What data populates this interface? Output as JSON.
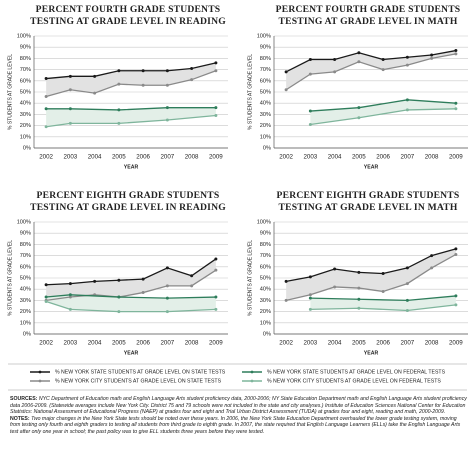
{
  "chart_data": [
    {
      "type": "line",
      "title": [
        "PERCENT FOURTH GRADE STUDENTS",
        "TESTING AT GRADE LEVEL IN READING"
      ],
      "categories": [
        "2002",
        "2003",
        "2004",
        "2005",
        "2006",
        "2007",
        "2008",
        "2009"
      ],
      "x_label": "YEAR",
      "y_label": "% STUDENTS AT GRADE LEVEL",
      "ylim": [
        0,
        100
      ],
      "yticks": [
        {
          "value": 0,
          "label": "0%"
        },
        {
          "value": 10,
          "label": "10%"
        },
        {
          "value": 20,
          "label": "20%"
        },
        {
          "value": 30,
          "label": "30%"
        },
        {
          "value": 40,
          "label": "40%"
        },
        {
          "value": 50,
          "label": "50%"
        },
        {
          "value": 60,
          "label": "60%"
        },
        {
          "value": 70,
          "label": "70%"
        },
        {
          "value": 80,
          "label": "80%"
        },
        {
          "value": 90,
          "label": "90%"
        },
        {
          "value": 100,
          "label": "100%"
        }
      ],
      "grid": true,
      "series": [
        {
          "name": "% NEW YORK STATE STUDENTS AT GRADE LEVEL ON STATE TESTS",
          "color": "#1a1a1a",
          "values": [
            62,
            64,
            64,
            69,
            69,
            69,
            71,
            76
          ]
        },
        {
          "name": "% NEW YORK CITY STUDENTS AT GRADE LEVEL ON STATE TESTS",
          "color": "#8a8a8a",
          "values": [
            46,
            52,
            49,
            57,
            56,
            56,
            61,
            69
          ]
        },
        {
          "name": "% NEW YORK STATE STUDENTS AT GRADE LEVEL ON FEDERAL TESTS",
          "color": "#2e7d5b",
          "values": [
            35,
            35,
            null,
            34,
            null,
            36,
            null,
            36
          ]
        },
        {
          "name": "% NEW YORK CITY STUDENTS AT GRADE LEVEL ON FEDERAL TESTS",
          "color": "#7fb59c",
          "values": [
            19,
            22,
            null,
            22,
            null,
            25,
            null,
            29
          ]
        }
      ]
    },
    {
      "type": "line",
      "title": [
        "PERCENT FOURTH GRADE STUDENTS",
        "TESTING AT GRADE LEVEL IN MATH"
      ],
      "categories": [
        "2002",
        "2003",
        "2004",
        "2005",
        "2006",
        "2007",
        "2008",
        "2009"
      ],
      "x_label": "YEAR",
      "y_label": "% STUDENTS AT GRADE LEVEL",
      "ylim": [
        0,
        100
      ],
      "yticks": [
        {
          "value": 0,
          "label": "0%"
        },
        {
          "value": 10,
          "label": "10%"
        },
        {
          "value": 20,
          "label": "20%"
        },
        {
          "value": 30,
          "label": "30%"
        },
        {
          "value": 40,
          "label": "40%"
        },
        {
          "value": 50,
          "label": "50%"
        },
        {
          "value": 60,
          "label": "60%"
        },
        {
          "value": 70,
          "label": "70%"
        },
        {
          "value": 80,
          "label": "80%"
        },
        {
          "value": 90,
          "label": "90%"
        },
        {
          "value": 100,
          "label": "100%"
        }
      ],
      "grid": true,
      "series": [
        {
          "name": "% NEW YORK STATE STUDENTS AT GRADE LEVEL ON STATE TESTS",
          "color": "#1a1a1a",
          "values": [
            68,
            79,
            79,
            85,
            79,
            81,
            83,
            87
          ]
        },
        {
          "name": "% NEW YORK CITY STUDENTS AT GRADE LEVEL ON STATE TESTS",
          "color": "#8a8a8a",
          "values": [
            52,
            66,
            68,
            77,
            70,
            74,
            80,
            84
          ]
        },
        {
          "name": "% NEW YORK STATE STUDENTS AT GRADE LEVEL ON FEDERAL TESTS",
          "color": "#2e7d5b",
          "values": [
            null,
            33,
            null,
            36,
            null,
            43,
            null,
            40
          ]
        },
        {
          "name": "% NEW YORK CITY STUDENTS AT GRADE LEVEL ON FEDERAL TESTS",
          "color": "#7fb59c",
          "values": [
            null,
            21,
            null,
            27,
            null,
            34,
            null,
            35
          ]
        }
      ]
    },
    {
      "type": "line",
      "title": [
        "PERCENT EIGHTH GRADE STUDENTS",
        "TESTING AT GRADE LEVEL IN READING"
      ],
      "categories": [
        "2002",
        "2003",
        "2004",
        "2005",
        "2006",
        "2007",
        "2008",
        "2009"
      ],
      "x_label": "YEAR",
      "y_label": "% STUDENTS AT GRADE LEVEL",
      "ylim": [
        0,
        100
      ],
      "yticks": [
        {
          "value": 0,
          "label": "0%"
        },
        {
          "value": 10,
          "label": "10%"
        },
        {
          "value": 20,
          "label": "20%"
        },
        {
          "value": 30,
          "label": "30%"
        },
        {
          "value": 40,
          "label": "40%"
        },
        {
          "value": 50,
          "label": "50%"
        },
        {
          "value": 60,
          "label": "60%"
        },
        {
          "value": 70,
          "label": "70%"
        },
        {
          "value": 80,
          "label": "80%"
        },
        {
          "value": 90,
          "label": "90%"
        },
        {
          "value": 100,
          "label": "100%"
        }
      ],
      "grid": true,
      "series": [
        {
          "name": "% NEW YORK STATE STUDENTS AT GRADE LEVEL ON STATE TESTS",
          "color": "#1a1a1a",
          "values": [
            44,
            45,
            47,
            48,
            49,
            59,
            52,
            67
          ]
        },
        {
          "name": "% NEW YORK CITY STUDENTS AT GRADE LEVEL ON STATE TESTS",
          "color": "#8a8a8a",
          "values": [
            30,
            33,
            35,
            33,
            37,
            43,
            43,
            57
          ]
        },
        {
          "name": "% NEW YORK STATE STUDENTS AT GRADE LEVEL ON FEDERAL TESTS",
          "color": "#2e7d5b",
          "values": [
            33,
            35,
            null,
            33,
            null,
            32,
            null,
            33
          ]
        },
        {
          "name": "% NEW YORK CITY STUDENTS AT GRADE LEVEL ON FEDERAL TESTS",
          "color": "#7fb59c",
          "values": [
            29,
            22,
            null,
            20,
            null,
            20,
            null,
            22
          ]
        }
      ]
    },
    {
      "type": "line",
      "title": [
        "PERCENT EIGHTH GRADE STUDENTS",
        "TESTING AT GRADE LEVEL IN MATH"
      ],
      "categories": [
        "2002",
        "2003",
        "2004",
        "2005",
        "2006",
        "2007",
        "2008",
        "2009"
      ],
      "x_label": "YEAR",
      "y_label": "% STUDENTS AT GRADE LEVEL",
      "ylim": [
        0,
        100
      ],
      "yticks": [
        {
          "value": 0,
          "label": "0%"
        },
        {
          "value": 10,
          "label": "10%"
        },
        {
          "value": 20,
          "label": "20%"
        },
        {
          "value": 30,
          "label": "30%"
        },
        {
          "value": 40,
          "label": "40%"
        },
        {
          "value": 50,
          "label": "50%"
        },
        {
          "value": 60,
          "label": "60%"
        },
        {
          "value": 70,
          "label": "70%"
        },
        {
          "value": 80,
          "label": "80%"
        },
        {
          "value": 90,
          "label": "90%"
        },
        {
          "value": 100,
          "label": "100%"
        }
      ],
      "grid": true,
      "series": [
        {
          "name": "% NEW YORK STATE STUDENTS AT GRADE LEVEL ON STATE TESTS",
          "color": "#1a1a1a",
          "values": [
            47,
            51,
            58,
            55,
            54,
            59,
            70,
            76
          ]
        },
        {
          "name": "% NEW YORK CITY STUDENTS AT GRADE LEVEL ON STATE TESTS",
          "color": "#8a8a8a",
          "values": [
            30,
            35,
            42,
            41,
            38,
            45,
            59,
            71
          ]
        },
        {
          "name": "% NEW YORK STATE STUDENTS AT GRADE LEVEL ON FEDERAL TESTS",
          "color": "#2e7d5b",
          "values": [
            null,
            32,
            null,
            31,
            null,
            30,
            null,
            34
          ]
        },
        {
          "name": "% NEW YORK CITY STUDENTS AT GRADE LEVEL ON FEDERAL TESTS",
          "color": "#7fb59c",
          "values": [
            null,
            22,
            null,
            23,
            null,
            21,
            null,
            26
          ]
        }
      ]
    }
  ],
  "footer": {
    "sources_label": "SOURCES:",
    "sources": "NYC Department of Education math and English Language Arts student proficiency data, 2000-2006; NY State Education Department math and English Language Arts student proficiency data 2006-2009. (Statewide averages include New York City. District 75 and 79 schools were not included in the state and city analyses.) Institute of Education Sciences National Center for Education Statistics: National Assessment of Educational Progress (NAEP) at grades four and eight and Trial Urban District Assessment (TUDA) at grades four and eight, reading and math, 2000-2009.",
    "notes_label": "NOTES:",
    "notes": "Two major changes in the New York State tests should be noted over these years. In 2006, the New York State Education Department overhauled the lower grade testing system, moving from testing only fourth and eighth graders to testing all students from third grade to eighth grade. In 2007, the state required that English Language Learners (ELLs) take the English Language Arts test after only one year in school; the past policy was to give ELL students three years before they were tested."
  }
}
